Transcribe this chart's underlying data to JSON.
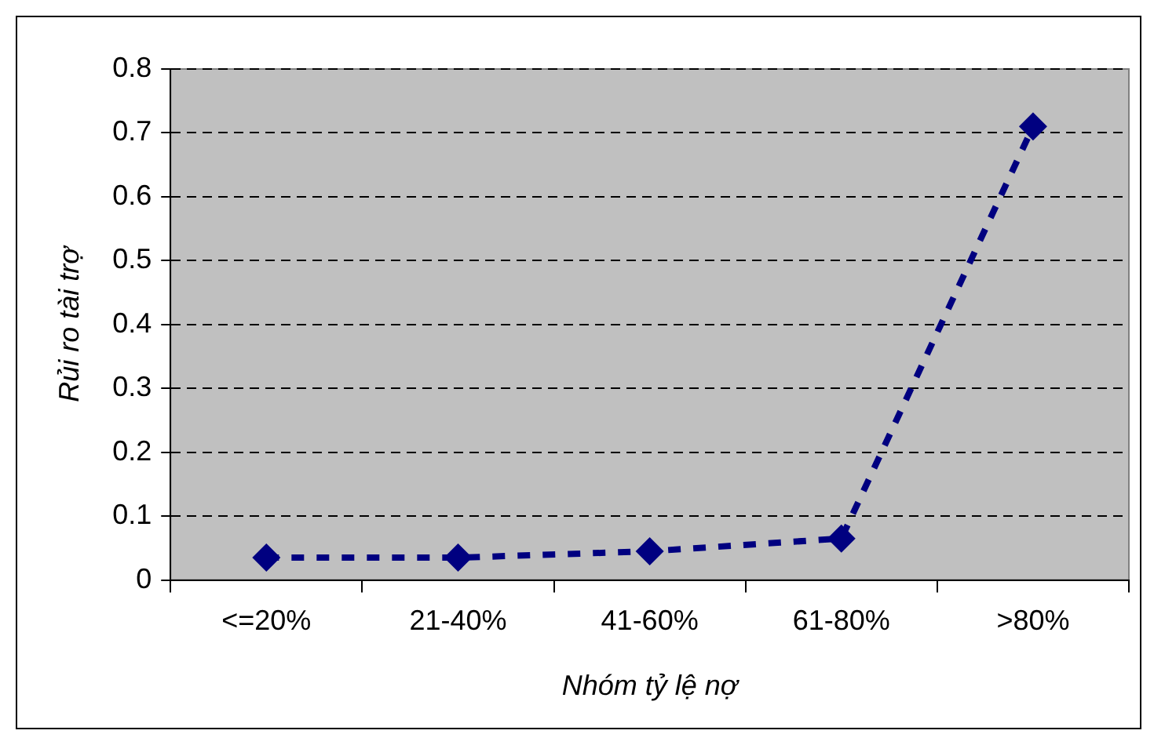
{
  "chart_data": {
    "type": "line",
    "xlabel": "Nhóm tỷ lệ nợ",
    "ylabel": "Rủi ro tài trợ",
    "categories": [
      "<=20%",
      "21-40%",
      "41-60%",
      "61-80%",
      ">80%"
    ],
    "series": [
      {
        "color": "#000080",
        "values": [
          0.035,
          0.035,
          0.045,
          0.065,
          0.71
        ]
      }
    ],
    "ylim": [
      0,
      0.8
    ],
    "yticks": [
      0,
      0.1,
      0.2,
      0.3,
      0.4,
      0.5,
      0.6,
      0.7,
      0.8
    ],
    "grid": "y",
    "legend": false,
    "marker": "diamond",
    "line_style": "dashed"
  }
}
